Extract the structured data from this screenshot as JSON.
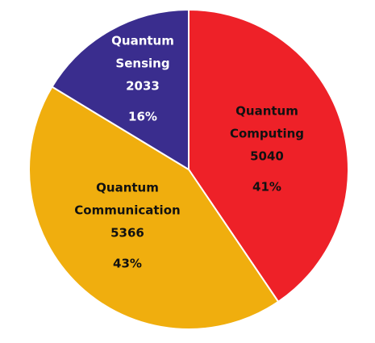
{
  "chart_data": {
    "type": "pie",
    "title": "",
    "slices": [
      {
        "name_lines": [
          "Quantum",
          "Computing"
        ],
        "value": 5040,
        "value_label": "5040",
        "percent_label": "41%",
        "color": "#ee2128",
        "text_color": "#111111"
      },
      {
        "name_lines": [
          "Quantum",
          "Communication"
        ],
        "value": 5366,
        "value_label": "5366",
        "percent_label": "43%",
        "color": "#f0ae0e",
        "text_color": "#111111"
      },
      {
        "name_lines": [
          "Quantum",
          "Sensing"
        ],
        "value": 2033,
        "value_label": "2033",
        "percent_label": "16%",
        "color": "#3a2d8e",
        "text_color": "#ffffff"
      }
    ],
    "start_direction": "top",
    "order": "clockwise",
    "slice_border": "#ffffff"
  }
}
